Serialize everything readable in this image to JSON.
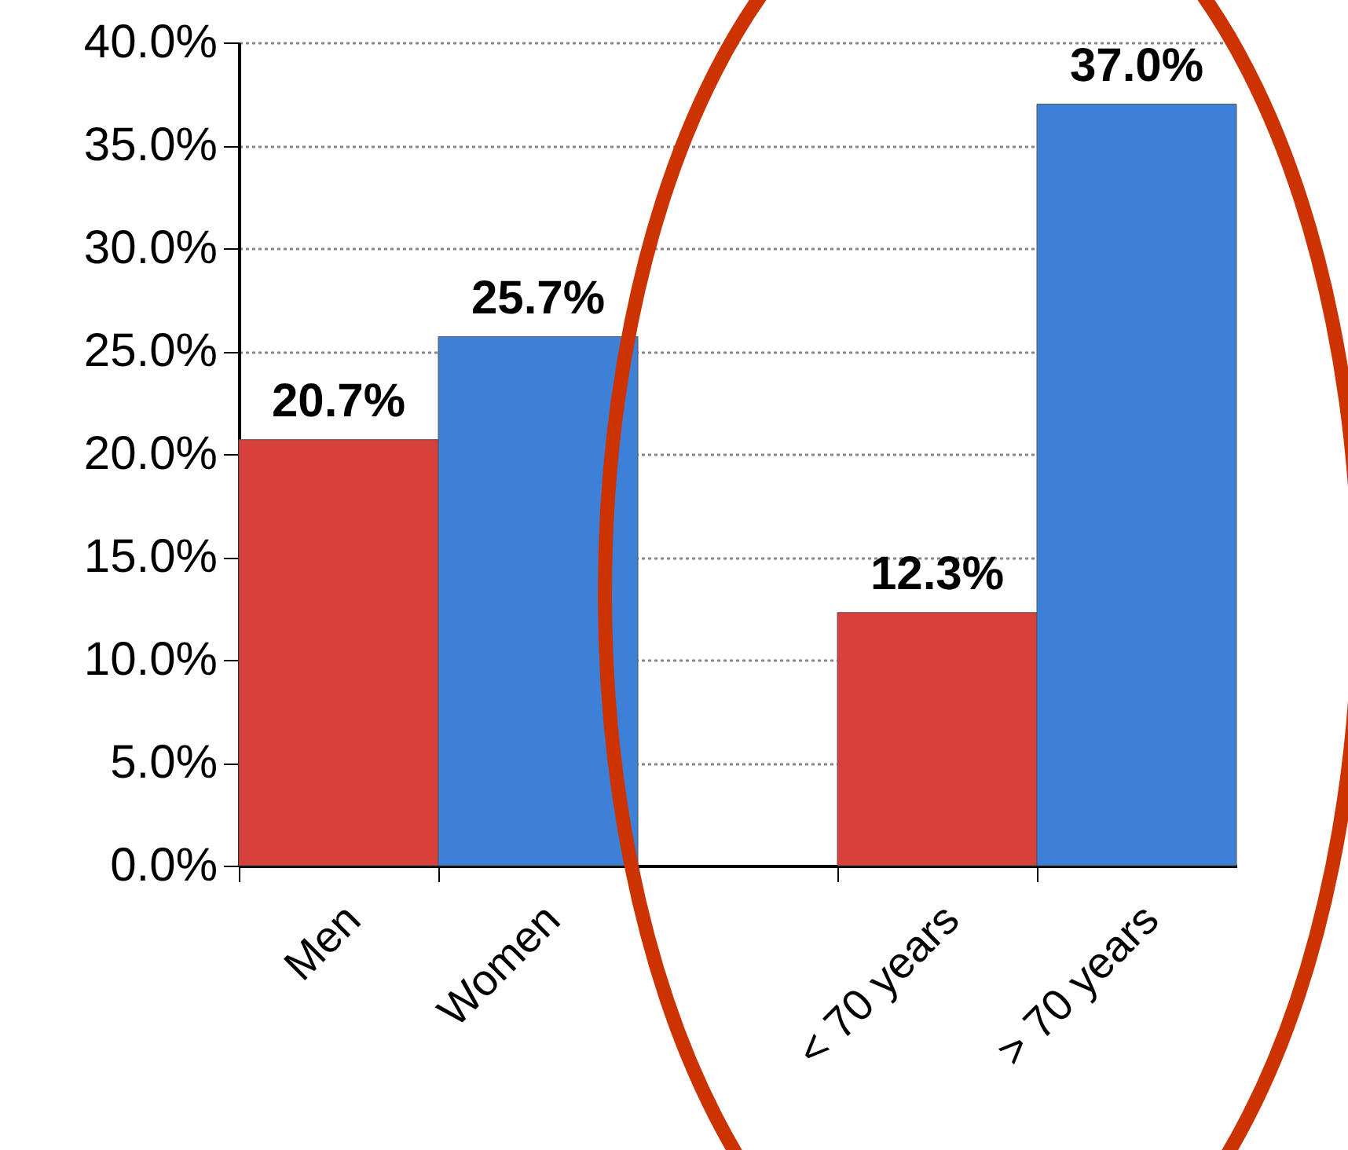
{
  "chart_data": {
    "type": "bar",
    "categories": [
      "Men",
      "Women",
      null,
      "< 70 years",
      "> 70 years"
    ],
    "values": [
      20.7,
      25.7,
      null,
      12.3,
      37.0
    ],
    "colors": [
      "#d8413b",
      "#3d80d8",
      null,
      "#d8413b",
      "#3d80d8"
    ],
    "value_labels": [
      "20.7%",
      "25.7%",
      null,
      "12.3%",
      "37.0%"
    ],
    "ylim": [
      0,
      40
    ],
    "yticks": [
      {
        "value": 0,
        "label": "0.0%"
      },
      {
        "value": 5,
        "label": "5.0%"
      },
      {
        "value": 10,
        "label": "10.0%"
      },
      {
        "value": 15,
        "label": "15.0%"
      },
      {
        "value": 20,
        "label": "20.0%"
      },
      {
        "value": 25,
        "label": "25.0%"
      },
      {
        "value": 30,
        "label": "30.0%"
      },
      {
        "value": 35,
        "label": "35.0%"
      },
      {
        "value": 40,
        "label": "40.0%"
      }
    ],
    "grid": "y"
  }
}
